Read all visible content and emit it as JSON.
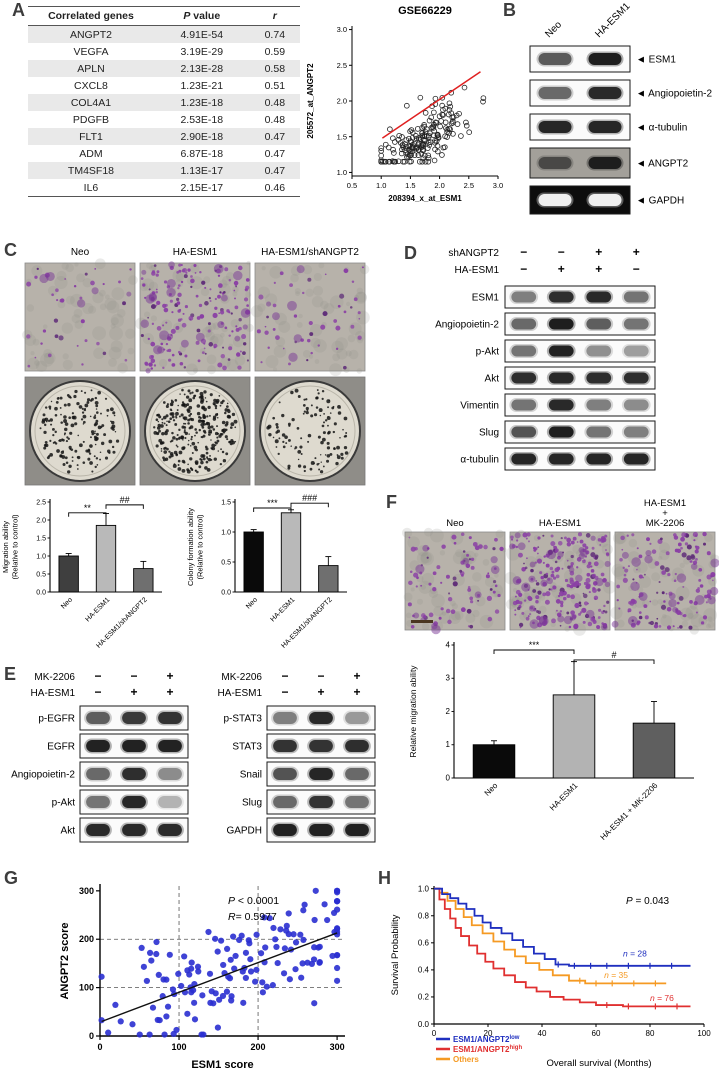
{
  "panel_labels": {
    "A": "A",
    "B": "B",
    "C": "C",
    "D": "D",
    "E": "E",
    "F": "F",
    "G": "G",
    "H": "H"
  },
  "panelA": {
    "table": {
      "headers": [
        "Correlated genes",
        "P value",
        "r"
      ],
      "rows": [
        [
          "ANGPT2",
          "4.91E-54",
          "0.74"
        ],
        [
          "VEGFA",
          "3.19E-29",
          "0.59"
        ],
        [
          "APLN",
          "2.13E-28",
          "0.58"
        ],
        [
          "CXCL8",
          "1.23E-21",
          "0.51"
        ],
        [
          "COL4A1",
          "1.23E-18",
          "0.48"
        ],
        [
          "PDGFB",
          "2.53E-18",
          "0.48"
        ],
        [
          "FLT1",
          "2.90E-18",
          "0.47"
        ],
        [
          "ADM",
          "6.87E-18",
          "0.47"
        ],
        [
          "TM4SF18",
          "1.13E-17",
          "0.47"
        ],
        [
          "IL6",
          "2.15E-17",
          "0.46"
        ]
      ]
    }
  },
  "panelB": {
    "lanes": [
      "Neo",
      "HA-ESM1"
    ],
    "arrow": "◄",
    "bands": [
      {
        "label": "ESM1",
        "intensities": [
          0.62,
          0.95
        ]
      },
      {
        "label": "Angiopoietin-2",
        "intensities": [
          0.55,
          0.88
        ]
      },
      {
        "label": "α-tubulin",
        "intensities": [
          0.9,
          0.9
        ]
      },
      {
        "label": "ANGPT2",
        "intensities": [
          0.55,
          0.92
        ],
        "style": "gel-gray"
      },
      {
        "label": "GAPDH",
        "intensities": [
          0.97,
          0.97
        ],
        "style": "gel-black"
      }
    ]
  },
  "panelC": {
    "columns": [
      "Neo",
      "HA-ESM1",
      "HA-ESM1/shANGPT2"
    ],
    "migration_images": {
      "cell_color": "#8a3fa5",
      "densities": [
        35,
        170,
        45
      ]
    },
    "colony_images": {
      "densities": [
        170,
        300,
        120
      ]
    }
  },
  "panelD": {
    "conditions": [
      {
        "name": "shANGPT2",
        "values": [
          "−",
          "−",
          "+",
          "+"
        ]
      },
      {
        "name": "HA-ESM1",
        "values": [
          "−",
          "+",
          "+",
          "−"
        ]
      }
    ],
    "bands": [
      {
        "label": "ESM1",
        "intensities": [
          0.45,
          0.85,
          0.88,
          0.5
        ]
      },
      {
        "label": "Angiopoietin-2",
        "intensities": [
          0.55,
          0.95,
          0.6,
          0.5
        ]
      },
      {
        "label": "p-Akt",
        "intensities": [
          0.5,
          0.92,
          0.38,
          0.33
        ]
      },
      {
        "label": "Akt",
        "intensities": [
          0.85,
          0.88,
          0.85,
          0.85
        ]
      },
      {
        "label": "Vimentin",
        "intensities": [
          0.5,
          0.88,
          0.45,
          0.4
        ]
      },
      {
        "label": "Slug",
        "intensities": [
          0.65,
          0.95,
          0.5,
          0.45
        ]
      },
      {
        "label": "α-tubulin",
        "intensities": [
          0.9,
          0.9,
          0.9,
          0.9
        ]
      }
    ]
  },
  "panelE": {
    "left": {
      "conditions": [
        {
          "name": "MK-2206",
          "values": [
            "−",
            "−",
            "+"
          ]
        },
        {
          "name": "HA-ESM1",
          "values": [
            "−",
            "+",
            "+"
          ]
        }
      ],
      "bands": [
        {
          "label": "p-EGFR",
          "intensities": [
            0.6,
            0.78,
            0.82
          ]
        },
        {
          "label": "EGFR",
          "intensities": [
            0.92,
            0.92,
            0.92
          ]
        },
        {
          "label": "Angiopoietin-2",
          "intensities": [
            0.55,
            0.85,
            0.4
          ]
        },
        {
          "label": "p-Akt",
          "intensities": [
            0.5,
            0.9,
            0.25
          ]
        },
        {
          "label": "Akt",
          "intensities": [
            0.88,
            0.88,
            0.88
          ]
        }
      ]
    },
    "right": {
      "conditions": [
        {
          "name": "MK-2206",
          "values": [
            "−",
            "−",
            "+"
          ]
        },
        {
          "name": "HA-ESM1",
          "values": [
            "−",
            "+",
            "+"
          ]
        }
      ],
      "bands": [
        {
          "label": "p-STAT3",
          "intensities": [
            0.45,
            0.88,
            0.35
          ]
        },
        {
          "label": "STAT3",
          "intensities": [
            0.82,
            0.82,
            0.85
          ]
        },
        {
          "label": "Snail",
          "intensities": [
            0.65,
            0.9,
            0.55
          ]
        },
        {
          "label": "Slug",
          "intensities": [
            0.55,
            0.82,
            0.5
          ]
        },
        {
          "label": "GAPDH",
          "intensities": [
            0.92,
            0.92,
            0.92
          ]
        }
      ]
    }
  },
  "panelF": {
    "image_labels": [
      [
        "Neo"
      ],
      [
        "HA-ESM1"
      ],
      [
        "HA-ESM1",
        "+",
        "MK-2206"
      ]
    ],
    "migration_images": {
      "cell_color": "#8a3fa5",
      "densities": [
        80,
        230,
        130
      ]
    }
  },
  "chart_data": [
    {
      "id": "panelA_scatter",
      "type": "scatter",
      "title": "GSE66229",
      "xlabel": "208394_x_at_ESM1",
      "ylabel": "205572_at_ANGPT2",
      "xlim": [
        0.5,
        3.0
      ],
      "ylim": [
        0.95,
        3.05
      ],
      "xticks": [
        0.5,
        1.0,
        1.5,
        2.0,
        2.5,
        3.0
      ],
      "yticks": [
        1.0,
        1.5,
        2.0,
        2.5,
        3.0
      ],
      "marker": "open-circle",
      "marker_color": "#222222",
      "n_points": 190,
      "trend": {
        "x": [
          1.02,
          2.7
        ],
        "y": [
          1.48,
          2.41
        ],
        "color": "#e02020"
      },
      "generator": {
        "seed": 7,
        "x_mean": 1.75,
        "x_sd": 0.36,
        "x_min": 1.0,
        "x_max": 2.75,
        "slope": 0.53,
        "intercept": 0.55,
        "noise_sd": 0.19,
        "y_min": 1.15,
        "y_max": 2.85
      }
    },
    {
      "id": "panelC_migration_bar",
      "type": "bar",
      "categories": [
        "Neo",
        "HA-ESM1",
        "HA-ESM1/shANGPT2"
      ],
      "values": [
        1.0,
        1.85,
        0.65
      ],
      "errors": [
        0.07,
        0.33,
        0.2
      ],
      "bar_colors": [
        "#3f3f3f",
        "#b9b9b9",
        "#6f6f6f"
      ],
      "ylabel_lines": [
        "Migration ability",
        "(Relative to control)"
      ],
      "ylim": [
        0,
        2.5
      ],
      "yticks": [
        0.0,
        0.5,
        1.0,
        1.5,
        2.0,
        2.5
      ],
      "sig": [
        {
          "pair": [
            0,
            1
          ],
          "label": "**",
          "height": 2.2
        },
        {
          "pair": [
            1,
            2
          ],
          "label": "##",
          "height": 2.42
        }
      ]
    },
    {
      "id": "panelC_colony_bar",
      "type": "bar",
      "categories": [
        "Neo",
        "HA-ESM1",
        "HA-ESM1/shANGPT2"
      ],
      "values": [
        1.0,
        1.32,
        0.44
      ],
      "errors": [
        0.04,
        0.05,
        0.15
      ],
      "bar_colors": [
        "#0a0a0a",
        "#b9b9b9",
        "#6f6f6f"
      ],
      "ylabel_lines": [
        "Colony formation ability",
        "(Relative to control)"
      ],
      "ylim": [
        0,
        1.5
      ],
      "yticks": [
        0.0,
        0.5,
        1.0,
        1.5
      ],
      "sig": [
        {
          "pair": [
            0,
            1
          ],
          "label": "***",
          "height": 1.4
        },
        {
          "pair": [
            1,
            2
          ],
          "label": "###",
          "height": 1.48
        }
      ]
    },
    {
      "id": "panelF_migration_bar",
      "type": "bar",
      "categories": [
        "Neo",
        "HA-ESM1",
        "HA-ESM1 + MK-2206"
      ],
      "values": [
        1.0,
        2.5,
        1.65
      ],
      "errors": [
        0.12,
        1.0,
        0.65
      ],
      "bar_colors": [
        "#0a0a0a",
        "#b3b3b3",
        "#5f5f5f"
      ],
      "ylabel_lines": [
        "Relative migration ability"
      ],
      "ylim": [
        0,
        4
      ],
      "yticks": [
        0,
        1,
        2,
        3,
        4
      ],
      "sig": [
        {
          "pair": [
            0,
            1
          ],
          "label": "***",
          "height": 3.85
        },
        {
          "pair": [
            1,
            2
          ],
          "label": "#",
          "height": 3.55
        }
      ]
    },
    {
      "id": "panelG_scatter",
      "type": "scatter",
      "xlabel": "ESM1 score",
      "ylabel": "ANGPT2 score",
      "xlim": [
        0,
        310
      ],
      "ylim": [
        0,
        310
      ],
      "xticks": [
        0,
        100,
        200,
        300
      ],
      "yticks": [
        0,
        100,
        200,
        300
      ],
      "grid_dashed": [
        100,
        200
      ],
      "annotations": [
        "P < 0.0001",
        "R= 0.5977"
      ],
      "marker": "filled-circle",
      "marker_color": "#2a2fd0",
      "n_points": 150,
      "trend": {
        "x": [
          2,
          300
        ],
        "y": [
          30,
          213
        ],
        "color": "#111111"
      },
      "generator": {
        "seed": 11,
        "x_mean": 175,
        "x_sd": 80,
        "x_min": 2,
        "x_max": 300,
        "slope": 0.62,
        "intercept": 32,
        "noise_sd": 52,
        "y_min": 3,
        "y_max": 300
      }
    },
    {
      "id": "panelH_km",
      "type": "line",
      "step": true,
      "xlabel": "Overall survival (Months)",
      "ylabel": "Survival Probability",
      "xlim": [
        0,
        100
      ],
      "ylim": [
        0,
        1.02
      ],
      "xticks": [
        0,
        20,
        40,
        60,
        80,
        100
      ],
      "yticks": [
        0.0,
        0.2,
        0.4,
        0.6,
        0.8,
        1.0
      ],
      "p_label": "P = 0.043",
      "series": [
        {
          "name": "ESM1/ANGPT2",
          "sup": "low",
          "color": "#1f2fbf",
          "n_label": "n = 28",
          "n_pos": [
            70,
            0.5
          ],
          "points": [
            [
              0,
              1
            ],
            [
              3,
              0.96
            ],
            [
              6,
              0.93
            ],
            [
              9,
              0.89
            ],
            [
              12,
              0.85
            ],
            [
              15,
              0.8
            ],
            [
              18,
              0.75
            ],
            [
              21,
              0.71
            ],
            [
              25,
              0.67
            ],
            [
              29,
              0.62
            ],
            [
              33,
              0.57
            ],
            [
              37,
              0.52
            ],
            [
              41,
              0.48
            ],
            [
              45,
              0.44
            ],
            [
              50,
              0.43
            ],
            [
              95,
              0.43
            ]
          ],
          "censors": [
            46,
            52,
            58,
            64,
            72,
            80,
            88
          ]
        },
        {
          "name": "ESM1/ANGPT2",
          "sup": "high",
          "color": "#e03030",
          "n_label": "n = 76",
          "n_pos": [
            80,
            0.17
          ],
          "points": [
            [
              0,
              1
            ],
            [
              2,
              0.92
            ],
            [
              4,
              0.85
            ],
            [
              6,
              0.78
            ],
            [
              8,
              0.71
            ],
            [
              10,
              0.65
            ],
            [
              13,
              0.58
            ],
            [
              16,
              0.52
            ],
            [
              19,
              0.46
            ],
            [
              22,
              0.41
            ],
            [
              26,
              0.36
            ],
            [
              30,
              0.31
            ],
            [
              34,
              0.27
            ],
            [
              38,
              0.24
            ],
            [
              43,
              0.2
            ],
            [
              48,
              0.18
            ],
            [
              54,
              0.16
            ],
            [
              60,
              0.14
            ],
            [
              70,
              0.13
            ],
            [
              95,
              0.13
            ]
          ],
          "censors": [
            64,
            72,
            82,
            90
          ]
        },
        {
          "name": "Others",
          "sup": "",
          "color": "#f59a23",
          "n_label": "n = 35",
          "n_pos": [
            63,
            0.34
          ],
          "points": [
            [
              0,
              1
            ],
            [
              2,
              0.97
            ],
            [
              5,
              0.91
            ],
            [
              8,
              0.85
            ],
            [
              11,
              0.79
            ],
            [
              14,
              0.73
            ],
            [
              18,
              0.67
            ],
            [
              22,
              0.61
            ],
            [
              26,
              0.55
            ],
            [
              30,
              0.5
            ],
            [
              34,
              0.45
            ],
            [
              39,
              0.4
            ],
            [
              44,
              0.36
            ],
            [
              50,
              0.32
            ],
            [
              56,
              0.3
            ],
            [
              86,
              0.3
            ]
          ],
          "censors": [
            54,
            60,
            66,
            74,
            82
          ]
        }
      ]
    }
  ]
}
